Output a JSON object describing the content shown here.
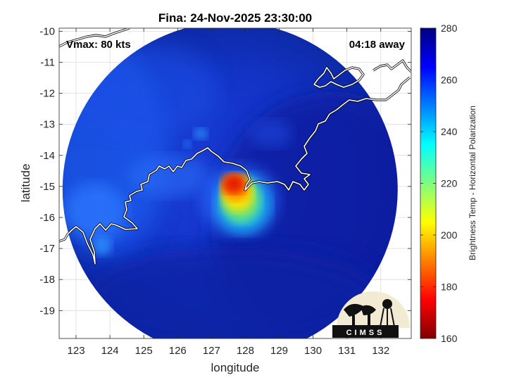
{
  "chart_data": {
    "type": "heatmap",
    "title": "Fina: 24-Nov-2025 23:30:00",
    "xlabel": "longitude",
    "ylabel": "latitude",
    "xlim": [
      122.5,
      132.9
    ],
    "ylim": [
      -19.9,
      -9.9
    ],
    "xticks": [
      "123",
      "124",
      "125",
      "126",
      "127",
      "128",
      "129",
      "130",
      "131",
      "132"
    ],
    "yticks": [
      "-10",
      "-11",
      "-12",
      "-13",
      "-14",
      "-15",
      "-16",
      "-17",
      "-18",
      "-19"
    ],
    "grid": true,
    "colorbar": {
      "label": "Brightness Temp - Horizontal Polarization",
      "min": 160,
      "max": 280,
      "ticks": [
        "280",
        "260",
        "240",
        "220",
        "200",
        "180",
        "160"
      ],
      "colormap": "jet"
    },
    "storm_center": {
      "lon": 127.7,
      "lat": -15.0
    },
    "swath": {
      "center_lon": 127.55,
      "center_lat": -15.1,
      "radius_deg": 4.95
    },
    "annotations": {
      "vmax": "Vmax: 80 kts",
      "time_away": "04:18 away"
    },
    "features": [
      {
        "lon": 127.6,
        "lat": -14.95,
        "value": 183
      },
      {
        "lon": 127.75,
        "lat": -15.3,
        "value": 205
      },
      {
        "lon": 127.95,
        "lat": -15.55,
        "value": 225
      },
      {
        "lon": 126.8,
        "lat": -14.5,
        "value": 243
      },
      {
        "lon": 124.0,
        "lat": -15.5,
        "value": 248
      },
      {
        "lon": 123.8,
        "lat": -13.5,
        "value": 258
      }
    ]
  },
  "logo": {
    "text": "CIMSS"
  }
}
